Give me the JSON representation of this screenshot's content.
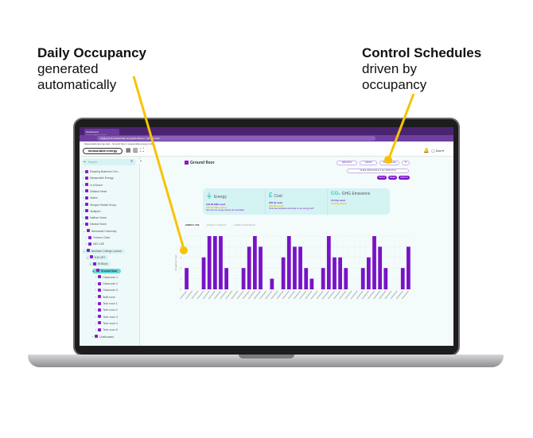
{
  "captions": {
    "left_bold": "Daily Occupancy",
    "left_rest": [
      "generated",
      "automatically"
    ],
    "right_bold": "Control Schedules",
    "right_rest": [
      "driven by",
      "occupancy"
    ]
  },
  "browser": {
    "tab": "Dashboard | measurable:energy",
    "url": "staging.hub.measurable.energy/locations/.../ground-floor",
    "bookmark": "Measurable Energy Hub - Ground floor | measurable:energy hub"
  },
  "app": {
    "logo": "measurable:energy",
    "user": "Dan"
  },
  "sidebar": {
    "search_placeholder": "Search",
    "items": [
      {
        "label": "Reading Business Cen...",
        "depth": 0
      },
      {
        "label": "Measurable Energy",
        "depth": 0
      },
      {
        "label": "in.a Board",
        "depth": 0
      },
      {
        "label": "Midland Heart",
        "depth": 0
      },
      {
        "label": "Wates",
        "depth": 0
      },
      {
        "label": "Morgan Sindall Group",
        "depth": 0
      },
      {
        "label": "Multiplex",
        "depth": 0
      },
      {
        "label": "Nathan Home",
        "depth": 0
      },
      {
        "label": "Neutral Home",
        "depth": 0
      },
      {
        "label": "Newcastle University",
        "depth": 0
      },
      {
        "label": "Futures Close",
        "depth": 1
      },
      {
        "label": "NE1 4SE",
        "depth": 1
      },
      {
        "label": "Newham College London",
        "depth": 0
      },
      {
        "label": "E16 4HT",
        "depth": 1
      },
      {
        "label": "W Block",
        "depth": 2
      },
      {
        "label": "Ground floor",
        "depth": 3
      },
      {
        "label": "Classroom 1",
        "depth": 4
      },
      {
        "label": "Classroom 2",
        "depth": 4
      },
      {
        "label": "Classroom 3",
        "depth": 4
      },
      {
        "label": "Staff room",
        "depth": 4
      },
      {
        "label": "Tech room 1",
        "depth": 4
      },
      {
        "label": "Tech room 2",
        "depth": 4
      },
      {
        "label": "Tech room 3",
        "depth": 4
      },
      {
        "label": "Tech room 4",
        "depth": 4
      },
      {
        "label": "Tech room 5",
        "depth": 4
      },
      {
        "label": "Unallocated",
        "depth": 3
      }
    ]
  },
  "main": {
    "title": "Ground floor",
    "buttons": {
      "reports": "REPORTS",
      "users": "USERS",
      "schedules": "SCHEDULES"
    },
    "date_range": "25 Mar 2025 00:00 to 3 Apr 2025 18:10",
    "periods": [
      "TODAY",
      "WEEK",
      "MONTH"
    ],
    "cards": [
      {
        "title": "Energy",
        "icon": "plug-icon",
        "used": "129.09 kWh used",
        "saved": "156.77 kWh saved",
        "note": "See how our energy savings are calculated"
      },
      {
        "title": "Cost",
        "icon": "pound-icon",
        "used": "£36.42 used",
        "saved": "£45.08 saved",
        "note": "Costs are calculated according to your energy tariff"
      },
      {
        "title": "GHG Emissions",
        "icon": "co2-icon",
        "used": "11.3 kg used",
        "saved": "13.6 kg saved",
        "note": ""
      }
    ],
    "chart_tabs": [
      "ENERGY USE",
      "ENERGY SAVINGS",
      "CARBON EMISSIONS"
    ]
  },
  "colors": {
    "accent": "#7a12c7",
    "teal": "#5fdad6",
    "highlight": "#f5c400"
  },
  "chart_data": {
    "type": "bar",
    "ylabel": "Occupancy Count",
    "ylim": [
      0,
      5
    ],
    "yticks": [
      0,
      1,
      2,
      3,
      4,
      5
    ],
    "grid": true,
    "values": [
      2,
      0,
      0,
      3,
      5,
      5,
      5,
      2,
      0,
      0,
      2,
      4,
      5,
      4,
      0,
      1,
      0,
      3,
      5,
      4,
      4,
      2,
      1,
      0,
      2,
      5,
      3,
      3,
      2,
      0,
      0,
      2,
      3,
      5,
      4,
      2,
      0,
      0,
      2,
      4
    ]
  }
}
